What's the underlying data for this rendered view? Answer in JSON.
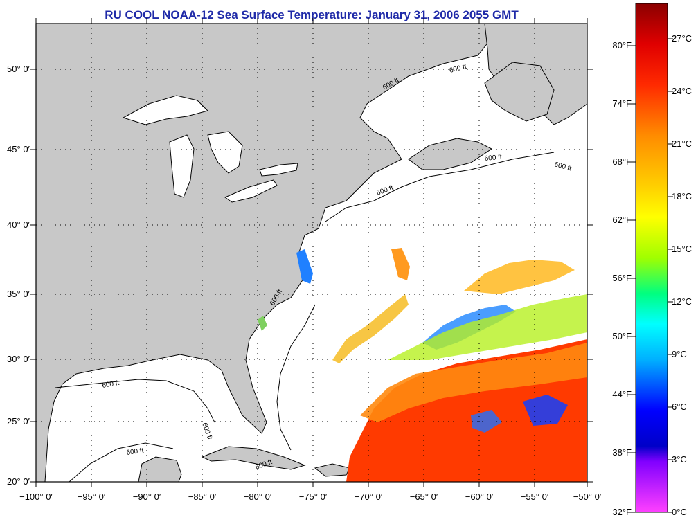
{
  "title": "RU COOL  NOAA-12  Sea Surface Temperature:  January 31, 2006 2055 GMT",
  "map": {
    "lon_labels": [
      "−100° 0′",
      "−95° 0′",
      "−90° 0′",
      "−85° 0′",
      "−80° 0′",
      "−75° 0′",
      "−70° 0′",
      "−65° 0′",
      "−60° 0′",
      "−55° 0′",
      "−50° 0′"
    ],
    "lat_labels": [
      "50° 0′",
      "45° 0′",
      "40° 0′",
      "35° 0′",
      "30° 0′",
      "25° 0′",
      "20° 0′"
    ],
    "contour_labels": [
      "600 ft",
      "600 ft",
      "600 ft",
      "600 ft",
      "600 ft",
      "600 ft",
      "600 ft",
      "600 ft",
      "600 ft",
      "600 ft"
    ],
    "colors": {
      "land": "#c8c8c8",
      "ocean": "#ffffff",
      "grid": "#000000"
    }
  },
  "colorbar": {
    "fahrenheit_labels": [
      "80°F",
      "74°F",
      "68°F",
      "62°F",
      "56°F",
      "50°F",
      "44°F",
      "38°F",
      "32°F"
    ],
    "celsius_labels": [
      "27°C",
      "24°C",
      "21°C",
      "18°C",
      "15°C",
      "12°C",
      "9°C",
      "6°C",
      "3°C",
      "0°C"
    ],
    "stops": [
      "#8b0000",
      "#ff0000",
      "#ff6a00",
      "#ffa500",
      "#ffff00",
      "#7fff00",
      "#00ff7f",
      "#00ffff",
      "#00bfff",
      "#0000ff",
      "#8000ff",
      "#ff00ff"
    ]
  }
}
